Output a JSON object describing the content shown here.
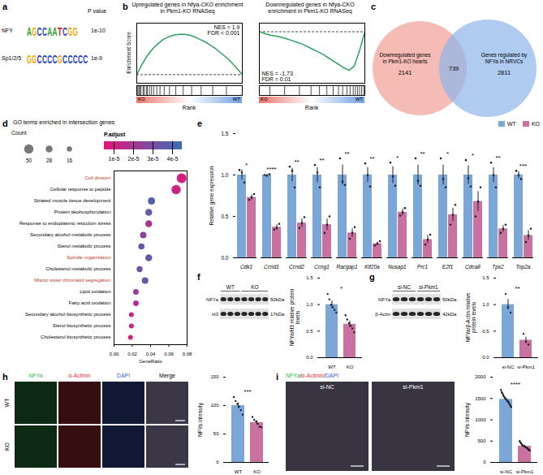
{
  "chart_data": [
    {
      "panel": "b",
      "type": "line",
      "title": "Upregulated genes in Nfya-CKO enrichment in Pkm1-KO RNASeq",
      "x": [
        0,
        5,
        10,
        15,
        20,
        25,
        30,
        35,
        40,
        45,
        50,
        55,
        60,
        65,
        70,
        75,
        80,
        85,
        90,
        95,
        100
      ],
      "values": [
        0,
        0.12,
        0.22,
        0.3,
        0.36,
        0.41,
        0.44,
        0.46,
        0.47,
        0.47,
        0.46,
        0.44,
        0.41,
        0.38,
        0.34,
        0.3,
        0.25,
        0.2,
        0.14,
        0.07,
        0
      ],
      "color": "#2ca25f",
      "xlim": [
        0,
        100
      ],
      "ylim": [
        -0.1,
        0.6
      ],
      "tick_labels": false,
      "reference_line": 0,
      "y_label": "Enrichment Score",
      "x_label": "Rank",
      "annotations": [
        "NES = 1.9",
        "FDR < 0.001"
      ],
      "hits": [
        1,
        2,
        3,
        4,
        6,
        7,
        9,
        10,
        12,
        14,
        16,
        19,
        22,
        26,
        31,
        37,
        44,
        52,
        61,
        72,
        85
      ],
      "rank_ends": [
        "KO",
        "WT"
      ]
    },
    {
      "type": "line",
      "title": "Downregulated genes in Nfya-CKO enrichment in Pkm1-KO RNASeq",
      "x": [
        0,
        5,
        10,
        15,
        20,
        25,
        30,
        35,
        40,
        45,
        50,
        55,
        60,
        65,
        70,
        75,
        80,
        85,
        90,
        95,
        100
      ],
      "values": [
        0,
        -0.02,
        -0.04,
        -0.05,
        -0.06,
        -0.08,
        -0.1,
        -0.12,
        -0.14,
        -0.17,
        -0.2,
        -0.23,
        -0.26,
        -0.3,
        -0.34,
        -0.38,
        -0.42,
        -0.45,
        -0.4,
        -0.22,
        0
      ],
      "color": "#2ca25f",
      "xlim": [
        0,
        100
      ],
      "ylim": [
        -0.6,
        0.1
      ],
      "tick_labels": false,
      "reference_line": 0,
      "x_label": "Rank",
      "annotations": [
        "NES = -1.73",
        "FDR = 0.01"
      ],
      "hits": [
        10,
        24,
        38,
        49,
        57,
        64,
        70,
        75,
        79,
        83,
        86,
        89,
        91,
        93,
        95,
        97,
        99
      ],
      "rank_ends": [
        "KO",
        "WT"
      ]
    },
    {
      "panel": "d",
      "type": "scatter",
      "title": "GO terms enriched in intersection genes",
      "categories": [
        "Cell division",
        "Cellular response to peptide",
        "Striated muscle tissue development",
        "Protein dephosphorylation",
        "Response to endoplasmic reticulum stress",
        "Secondary alcohol metabolic process",
        "Sterol metabolic process",
        "Spindle organization",
        "Cholesterol metabolic process",
        "Mitotic sister chromatid segregation",
        "Lipid oxidation",
        "Fatty acid oxidation",
        "Secondary alcohol biosynthetic process",
        "Sterol biosynthetic process",
        "Cholesterol biosynthetic process"
      ],
      "values": [
        0.074,
        0.068,
        0.041,
        0.038,
        0.038,
        0.032,
        0.03,
        0.038,
        0.028,
        0.034,
        0.024,
        0.024,
        0.019,
        0.019,
        0.018
      ],
      "sizes": [
        55,
        50,
        30,
        28,
        28,
        24,
        22,
        28,
        21,
        25,
        18,
        18,
        14,
        14,
        13
      ],
      "p_adjust": [
        9e-06,
        1.2e-05,
        3.8e-05,
        3.6e-05,
        2e-05,
        2.6e-05,
        3.4e-05,
        3.5e-05,
        3.3e-05,
        3.6e-05,
        2.4e-05,
        1.6e-05,
        1.2e-05,
        1.1e-05,
        1e-05
      ],
      "x_label": "GeneRatio",
      "xlim": [
        0,
        0.08
      ],
      "xticks": [
        {
          "value": 0,
          "label": "0.00"
        },
        {
          "value": 0.02,
          "label": "0.02"
        },
        {
          "value": 0.04,
          "label": "0.04"
        },
        {
          "value": 0.06,
          "label": "0.06"
        },
        {
          "value": 0.08,
          "label": "0.08"
        }
      ],
      "size_legend": {
        "title": "Count",
        "values": [
          50,
          28,
          16
        ]
      },
      "color_bar": {
        "title": "P.adjust",
        "range": [
          5e-06,
          4.5e-05
        ],
        "colors": [
          "#e8157a",
          "#3b6db7"
        ],
        "ticks": [
          {
            "value": 4e-05,
            "label": "4e-5"
          },
          {
            "value": 3e-05,
            "label": "3e-5"
          },
          {
            "value": 2e-05,
            "label": "2e-5"
          },
          {
            "value": 1e-05,
            "label": "1e-5"
          }
        ]
      },
      "highlighted": [
        "Cell division",
        "Spindle organization",
        "Mitotic sister chromatid segregation"
      ]
    },
    {
      "panel": "e",
      "type": "bar",
      "categories": [
        "Cdk1",
        "Ccnd1",
        "Ccnd2",
        "Ccng1",
        "Racgap1",
        "Kif20a",
        "Nusap1",
        "Prc1",
        "E2f1",
        "Cdca8",
        "Tpx2",
        "Top2a"
      ],
      "series": [
        {
          "name": "WT",
          "color": "#7aa7d8",
          "values": [
            1,
            1,
            1,
            1,
            1,
            1,
            1,
            1,
            1,
            1,
            1,
            1
          ],
          "errors": [
            0.06,
            0.01,
            0.08,
            0.09,
            0.12,
            0.09,
            0.1,
            0.12,
            0.12,
            0.11,
            0.09,
            0.04
          ],
          "points": [
            [
              1.06,
              1.03,
              0.91
            ],
            [
              1.0,
              0.99,
              1.01
            ],
            [
              1.1,
              1.05,
              0.85
            ],
            [
              1.12,
              1.03,
              0.85
            ],
            [
              1.2,
              0.92,
              0.88
            ],
            [
              1.14,
              1.0,
              0.86
            ],
            [
              1.15,
              0.98,
              0.87
            ],
            [
              1.2,
              0.93,
              0.87
            ],
            [
              1.2,
              0.95,
              0.85
            ],
            [
              1.18,
              0.96,
              0.86
            ],
            [
              1.15,
              1.0,
              0.85
            ],
            [
              1.05,
              1.0,
              0.95
            ]
          ]
        },
        {
          "name": "KO",
          "color": "#c9719f",
          "values": [
            0.73,
            0.37,
            0.42,
            0.4,
            0.3,
            0.17,
            0.55,
            0.22,
            0.52,
            0.68,
            0.35,
            0.27
          ],
          "errors": [
            0.03,
            0.03,
            0.05,
            0.07,
            0.05,
            0.02,
            0.04,
            0.05,
            0.08,
            0.12,
            0.04,
            0.06
          ],
          "points": [
            [
              0.7,
              0.73,
              0.77
            ],
            [
              0.34,
              0.36,
              0.41
            ],
            [
              0.36,
              0.42,
              0.49
            ],
            [
              0.3,
              0.4,
              0.5
            ],
            [
              0.23,
              0.3,
              0.37
            ],
            [
              0.15,
              0.17,
              0.2
            ],
            [
              0.51,
              0.55,
              0.6
            ],
            [
              0.16,
              0.22,
              0.28
            ],
            [
              0.4,
              0.52,
              0.64
            ],
            [
              0.5,
              0.68,
              0.85
            ],
            [
              0.3,
              0.35,
              0.4
            ],
            [
              0.19,
              0.27,
              0.35
            ]
          ]
        }
      ],
      "ylim": [
        0,
        1.5
      ],
      "yticks": [
        {
          "value": 0,
          "label": "0.0"
        },
        {
          "value": 0.5,
          "label": "0.5"
        },
        {
          "value": 1,
          "label": "1.0"
        },
        {
          "value": 1.5,
          "label": "1.5"
        }
      ],
      "y_label": "Relative gene expression",
      "significance": [
        "*",
        "****",
        "**",
        "**",
        "**",
        "**",
        "*",
        "**",
        "*",
        "*",
        "**",
        "***"
      ],
      "legend": "top-right"
    },
    {
      "panel": "f",
      "type": "bar",
      "categories": [
        "WT",
        "KO"
      ],
      "values": [
        1.0,
        0.63
      ],
      "errors": [
        0.07,
        0.06
      ],
      "points": [
        [
          1.2,
          1.1,
          1.0,
          0.95,
          0.9,
          0.85
        ],
        [
          0.8,
          0.72,
          0.65,
          0.6,
          0.55,
          0.48
        ]
      ],
      "colors": [
        "#7aa7d8",
        "#c9719f"
      ],
      "ylim": [
        0,
        1.5
      ],
      "yticks": [
        {
          "value": 0,
          "label": "0.0"
        },
        {
          "value": 0.5,
          "label": "0.5"
        },
        {
          "value": 1,
          "label": "1.0"
        },
        {
          "value": 1.5,
          "label": "1.5"
        }
      ],
      "y_label": "NFYa/H3 relative protein levels",
      "significance": "*"
    },
    {
      "panel": "g",
      "type": "bar",
      "categories": [
        "si-NC",
        "si-Pkm1"
      ],
      "values": [
        1.0,
        0.33
      ],
      "errors": [
        0.1,
        0.06
      ],
      "points": [
        [
          1.2,
          0.95,
          0.85
        ],
        [
          0.45,
          0.3,
          0.25
        ]
      ],
      "colors": [
        "#7aa7d8",
        "#c9719f"
      ],
      "ylim": [
        0,
        1.5
      ],
      "yticks": [
        {
          "value": 0,
          "label": "0.0"
        },
        {
          "value": 0.5,
          "label": "0.5"
        },
        {
          "value": 1,
          "label": "1.0"
        },
        {
          "value": 1.5,
          "label": "1.5"
        }
      ],
      "y_label": "NFYa/β-Actin relative protein levels",
      "significance": "**"
    },
    {
      "panel": "h",
      "type": "bar",
      "categories": [
        "WT",
        "KO"
      ],
      "values": [
        100,
        70
      ],
      "errors": [
        5,
        3.5
      ],
      "points": [
        [
          115,
          108,
          103,
          98,
          92,
          84
        ],
        [
          80,
          75,
          72,
          68,
          63,
          62
        ]
      ],
      "colors": [
        "#7aa7d8",
        "#c9719f"
      ],
      "ylim": [
        0,
        150
      ],
      "yticks": [
        0,
        50,
        100,
        150
      ],
      "y_label": "NFYa intensity",
      "significance": "***"
    },
    {
      "panel": "i",
      "type": "bar",
      "categories": [
        "si-NC",
        "si-Pkm1"
      ],
      "values": [
        1480,
        380
      ],
      "errors": [
        25,
        15
      ],
      "points": [
        [
          1700,
          1650,
          1620,
          1580,
          1550,
          1520,
          1500,
          1480,
          1460,
          1440,
          1420,
          1390,
          1360,
          1330,
          1300
        ],
        [
          500,
          470,
          450,
          420,
          400,
          390,
          380,
          370,
          360,
          350,
          340,
          320,
          310,
          290,
          280
        ]
      ],
      "colors": [
        "#7aa7d8",
        "#c9719f"
      ],
      "ylim": [
        0,
        2000
      ],
      "yticks": [
        0,
        500,
        1000,
        1500,
        2000
      ],
      "y_label": "NFYa intensity",
      "significance": "****"
    }
  ],
  "diagrams": {
    "a": {
      "letter": "a",
      "header": "P value",
      "motifs": [
        {
          "name": "NFY",
          "sequence": "AGCCAATCGG",
          "p_value": "1e-10"
        },
        {
          "name": "Sp1/2/5",
          "sequence": "GGCCCCGCCCCC",
          "p_value": "1e-9"
        }
      ]
    },
    "c": {
      "letter": "c",
      "left": {
        "label": "Downregulated genes in Pkm1-KO hearts",
        "count": 2141,
        "color": "#f2aaa3"
      },
      "overlap": 739,
      "right": {
        "label": "Genes regulated by NFYa in NRVCs",
        "count": 2811,
        "color": "#8db5ea"
      }
    },
    "f_blot": {
      "groups": [
        {
          "label": "WT",
          "lanes": 3
        },
        {
          "label": "KO",
          "lanes": 4
        }
      ],
      "bands": [
        {
          "label": "NFYa",
          "size": "50kDa"
        },
        {
          "label": "H3",
          "size": "17kDa"
        }
      ]
    },
    "g_blot": {
      "groups": [
        {
          "label": "si-NC",
          "lanes": 3
        },
        {
          "label": "si-Pkm1",
          "lanes": 3
        }
      ],
      "bands": [
        {
          "label": "NFYa",
          "size": "50kDa"
        },
        {
          "label": "β-Actin",
          "size": "42kDa"
        }
      ]
    },
    "h_images": {
      "columns": [
        {
          "label": "NFYa",
          "color": "#2db84d"
        },
        {
          "label": "α-Actinin",
          "color": "#e0303a"
        },
        {
          "label": "DAPI",
          "color": "#3a5fe0"
        },
        {
          "label": "Merge",
          "color": "#000000"
        }
      ],
      "rows": [
        "WT",
        "KO"
      ]
    },
    "i_images": {
      "heading": [
        {
          "text": "NFYa",
          "color": "#2db84d"
        },
        {
          "text": "/",
          "color": "#000000"
        },
        {
          "text": "α-Actinin",
          "color": "#e0303a"
        },
        {
          "text": "/",
          "color": "#000000"
        },
        {
          "text": "DAPI",
          "color": "#3a5fe0"
        }
      ],
      "images": [
        "si-NC",
        "si-Pkm1"
      ]
    }
  }
}
